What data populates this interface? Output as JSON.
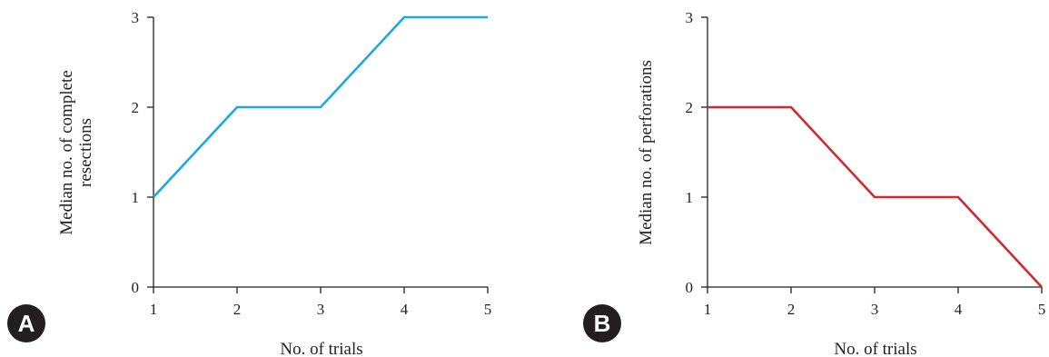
{
  "panels": [
    {
      "letter": "A",
      "badge_color": "#231f20",
      "ylabel_lines": [
        "Median no. of complete",
        "resections"
      ],
      "xlabel": "No. of trials",
      "line_color": "#1ba9e1"
    },
    {
      "letter": "B",
      "badge_color": "#231f20",
      "ylabel_lines": [
        "Median no. of perforations"
      ],
      "xlabel": "No. of trials",
      "line_color": "#d0282e"
    }
  ],
  "chart_data": [
    {
      "type": "line",
      "x": [
        1,
        2,
        3,
        4,
        5
      ],
      "series": [
        {
          "values": [
            1,
            2,
            2,
            3,
            3
          ],
          "color": "#1ba9e1"
        }
      ],
      "xlim": [
        1,
        5
      ],
      "ylim": [
        0,
        3
      ],
      "xticks": [
        "1",
        "2",
        "3",
        "4",
        "5"
      ],
      "yticks": [
        "0",
        "1",
        "2",
        "3"
      ],
      "xlabel": "No. of trials",
      "ylabel": "Median no. of complete resections",
      "grid": false
    },
    {
      "type": "line",
      "x": [
        1,
        2,
        3,
        4,
        5
      ],
      "series": [
        {
          "values": [
            2,
            2,
            1,
            1,
            0
          ],
          "color": "#d0282e"
        }
      ],
      "xlim": [
        1,
        5
      ],
      "ylim": [
        0,
        3
      ],
      "xticks": [
        "1",
        "2",
        "3",
        "4",
        "5"
      ],
      "yticks": [
        "0",
        "1",
        "2",
        "3"
      ],
      "xlabel": "No. of trials",
      "ylabel": "Median no. of perforations",
      "grid": false
    }
  ]
}
